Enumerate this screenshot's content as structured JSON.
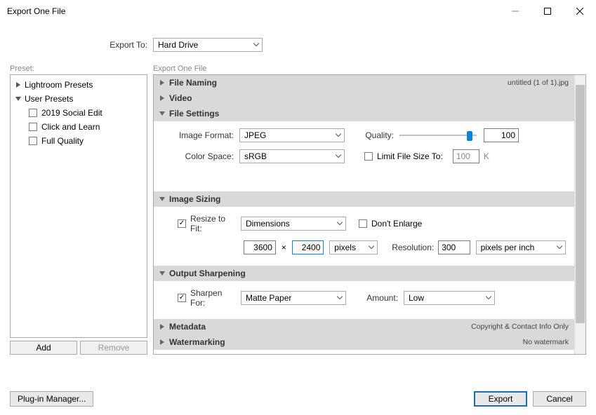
{
  "window": {
    "title": "Export One File"
  },
  "exportTo": {
    "label": "Export To:",
    "value": "Hard Drive"
  },
  "preset": {
    "label": "Preset:",
    "groups": [
      {
        "name": "Lightroom Presets",
        "expanded": false
      },
      {
        "name": "User Presets",
        "expanded": true,
        "items": [
          {
            "label": "2019 Social Edit",
            "checked": false
          },
          {
            "label": "Click and Learn",
            "checked": false
          },
          {
            "label": "Full Quality",
            "checked": false
          }
        ]
      }
    ],
    "addLabel": "Add",
    "removeLabel": "Remove"
  },
  "panelsLabel": "Export One File",
  "panels": {
    "fileNaming": {
      "title": "File Naming",
      "summary": "untitled (1 of 1).jpg"
    },
    "video": {
      "title": "Video"
    },
    "fileSettings": {
      "title": "File Settings",
      "imageFormatLabel": "Image Format:",
      "imageFormat": "JPEG",
      "qualityLabel": "Quality:",
      "quality": "100",
      "qualitySliderPercent": 94,
      "colorSpaceLabel": "Color Space:",
      "colorSpace": "sRGB",
      "limitFileSizeLabel": "Limit File Size To:",
      "limitFileSizeValue": "100",
      "limitFileSizeUnit": "K"
    },
    "imageSizing": {
      "title": "Image Sizing",
      "resizeToFitLabel": "Resize to Fit:",
      "resizeToFitChecked": true,
      "mode": "Dimensions",
      "dontEnlargeLabel": "Don't Enlarge",
      "dontEnlargeChecked": false,
      "width": "3600",
      "height": "2400",
      "x": "×",
      "unit": "pixels",
      "resolutionLabel": "Resolution:",
      "resolution": "300",
      "resolutionUnit": "pixels per inch"
    },
    "outputSharpening": {
      "title": "Output Sharpening",
      "sharpenForLabel": "Sharpen For:",
      "sharpenForChecked": true,
      "sharpenFor": "Matte Paper",
      "amountLabel": "Amount:",
      "amount": "Low"
    },
    "metadata": {
      "title": "Metadata",
      "summary": "Copyright & Contact Info Only"
    },
    "watermarking": {
      "title": "Watermarking",
      "summary": "No watermark"
    }
  },
  "buttons": {
    "plugin": "Plug-in Manager...",
    "export": "Export",
    "cancel": "Cancel"
  }
}
